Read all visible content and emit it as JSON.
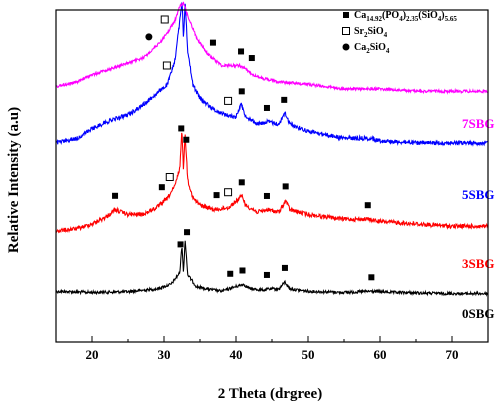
{
  "chart_data": {
    "type": "line",
    "xlabel": "2 Theta (drgree)",
    "ylabel": "Relative Intensity (a.u)",
    "xlim": [
      15,
      75
    ],
    "x_ticks": [
      20,
      30,
      40,
      50,
      60,
      70
    ],
    "y_ticks": false,
    "grid": false,
    "legend_position": "top-right",
    "legend": [
      {
        "marker": "filled-square",
        "parts": [
          [
            "Ca",
            ""
          ],
          [
            "14.92",
            "sub"
          ],
          [
            "(PO",
            ""
          ],
          [
            "4",
            "sub"
          ],
          [
            ")",
            ""
          ],
          [
            "2.35",
            "sub"
          ],
          [
            "(SiO",
            ""
          ],
          [
            "4",
            "sub"
          ],
          [
            ")",
            ""
          ],
          [
            "5.65",
            "sub"
          ]
        ]
      },
      {
        "marker": "open-square",
        "parts": [
          [
            "Sr",
            ""
          ],
          [
            "2",
            "sub"
          ],
          [
            "SiO",
            ""
          ],
          [
            "4",
            "sub"
          ]
        ]
      },
      {
        "marker": "filled-circle",
        "parts": [
          [
            "Ca",
            ""
          ],
          [
            "2",
            "sub"
          ],
          [
            "SiO",
            ""
          ],
          [
            "4",
            "sub"
          ]
        ]
      }
    ],
    "series": [
      {
        "name": "0SBG",
        "color": "#000000",
        "baseline": 0.0,
        "noise": 0.012,
        "points": [
          [
            15,
            0.02
          ],
          [
            20,
            0.015
          ],
          [
            25,
            0.018
          ],
          [
            29,
            0.03
          ],
          [
            31,
            0.05
          ],
          [
            32.2,
            0.1
          ],
          [
            32.5,
            0.22
          ],
          [
            32.7,
            0.1
          ],
          [
            32.95,
            0.24
          ],
          [
            33.3,
            0.09
          ],
          [
            34.5,
            0.04
          ],
          [
            36,
            0.03
          ],
          [
            38,
            0.02
          ],
          [
            40.5,
            0.045
          ],
          [
            41,
            0.05
          ],
          [
            42,
            0.03
          ],
          [
            44,
            0.025
          ],
          [
            44.5,
            0.03
          ],
          [
            46,
            0.03
          ],
          [
            46.8,
            0.06
          ],
          [
            47.5,
            0.03
          ],
          [
            50,
            0.02
          ],
          [
            55,
            0.015
          ],
          [
            58.8,
            0.02
          ],
          [
            62,
            0.015
          ],
          [
            70,
            0.01
          ],
          [
            75,
            0.01
          ]
        ]
      },
      {
        "name": "3SBG",
        "color": "#ff0000",
        "baseline": 0.0,
        "noise": 0.018,
        "points": [
          [
            15,
            0.03
          ],
          [
            18,
            0.04
          ],
          [
            20,
            0.06
          ],
          [
            22,
            0.09
          ],
          [
            23.2,
            0.12
          ],
          [
            25,
            0.1
          ],
          [
            27,
            0.1
          ],
          [
            29,
            0.13
          ],
          [
            30.5,
            0.17
          ],
          [
            31.5,
            0.22
          ],
          [
            32.2,
            0.3
          ],
          [
            32.5,
            0.46
          ],
          [
            32.7,
            0.3
          ],
          [
            32.95,
            0.44
          ],
          [
            33.3,
            0.25
          ],
          [
            34,
            0.17
          ],
          [
            35,
            0.14
          ],
          [
            37,
            0.12
          ],
          [
            39,
            0.13
          ],
          [
            40.9,
            0.18
          ],
          [
            41.3,
            0.14
          ],
          [
            43,
            0.11
          ],
          [
            44.4,
            0.12
          ],
          [
            46,
            0.11
          ],
          [
            46.9,
            0.16
          ],
          [
            47.5,
            0.12
          ],
          [
            50,
            0.1
          ],
          [
            55,
            0.08
          ],
          [
            58.3,
            0.08
          ],
          [
            60,
            0.07
          ],
          [
            65,
            0.06
          ],
          [
            70,
            0.05
          ],
          [
            75,
            0.05
          ]
        ]
      },
      {
        "name": "5SBG",
        "color": "#0000ff",
        "baseline": 0.0,
        "noise": 0.018,
        "points": [
          [
            15,
            0.03
          ],
          [
            18,
            0.05
          ],
          [
            20,
            0.09
          ],
          [
            22,
            0.12
          ],
          [
            25,
            0.15
          ],
          [
            27,
            0.19
          ],
          [
            29,
            0.24
          ],
          [
            30.5,
            0.28
          ],
          [
            31.5,
            0.38
          ],
          [
            32.2,
            0.55
          ],
          [
            32.5,
            0.64
          ],
          [
            32.7,
            0.48
          ],
          [
            32.95,
            0.63
          ],
          [
            33.3,
            0.42
          ],
          [
            34,
            0.28
          ],
          [
            35,
            0.22
          ],
          [
            37,
            0.17
          ],
          [
            38.5,
            0.15
          ],
          [
            40,
            0.14
          ],
          [
            40.7,
            0.2
          ],
          [
            41.2,
            0.15
          ],
          [
            43,
            0.11
          ],
          [
            44.4,
            0.12
          ],
          [
            46,
            0.11
          ],
          [
            46.8,
            0.16
          ],
          [
            47.5,
            0.11
          ],
          [
            50,
            0.08
          ],
          [
            55,
            0.05
          ],
          [
            58.5,
            0.05
          ],
          [
            60,
            0.04
          ],
          [
            65,
            0.03
          ],
          [
            70,
            0.03
          ],
          [
            75,
            0.03
          ]
        ]
      },
      {
        "name": "7SBG",
        "color": "#ff00ff",
        "baseline": 0.0,
        "noise": 0.012,
        "points": [
          [
            15,
            0.04
          ],
          [
            18,
            0.06
          ],
          [
            20,
            0.09
          ],
          [
            22,
            0.11
          ],
          [
            25,
            0.14
          ],
          [
            27,
            0.16
          ],
          [
            28.5,
            0.2
          ],
          [
            29.5,
            0.23
          ],
          [
            30.5,
            0.27
          ],
          [
            31.5,
            0.32
          ],
          [
            32.2,
            0.38
          ],
          [
            32.7,
            0.4
          ],
          [
            33.3,
            0.34
          ],
          [
            34.5,
            0.25
          ],
          [
            36,
            0.18
          ],
          [
            38,
            0.13
          ],
          [
            40.5,
            0.13
          ],
          [
            41.5,
            0.11
          ],
          [
            43,
            0.08
          ],
          [
            46,
            0.06
          ],
          [
            50,
            0.05
          ],
          [
            55,
            0.03
          ],
          [
            60,
            0.03
          ],
          [
            65,
            0.02
          ],
          [
            70,
            0.02
          ],
          [
            75,
            0.02
          ]
        ]
      }
    ],
    "markers": [
      {
        "series": "0SBG",
        "type": "filled-square",
        "x": [
          32.3,
          33.2,
          39.2,
          40.9,
          44.3,
          46.8,
          58.8
        ]
      },
      {
        "series": "3SBG",
        "type": "filled-square",
        "x": [
          23.2,
          29.7,
          32.4,
          33.1,
          37.3,
          40.8,
          44.3,
          46.9,
          58.3
        ]
      },
      {
        "series": "3SBG",
        "type": "open-square",
        "x": [
          30.8,
          38.9
        ]
      },
      {
        "series": "5SBG",
        "type": "filled-square",
        "x": [
          40.8,
          44.3,
          46.7
        ]
      },
      {
        "series": "5SBG",
        "type": "open-square",
        "x": [
          30.4,
          38.9
        ]
      },
      {
        "series": "7SBG",
        "type": "filled-square",
        "x": [
          33.1,
          36.8,
          40.7,
          42.2
        ]
      },
      {
        "series": "7SBG",
        "type": "open-square",
        "x": [
          30.1
        ]
      },
      {
        "series": "7SBG",
        "type": "filled-circle",
        "x": [
          27.9,
          32.0
        ]
      }
    ]
  }
}
